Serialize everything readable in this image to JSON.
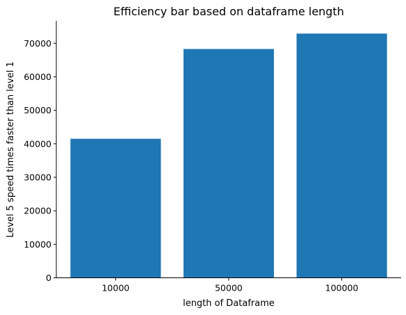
{
  "chart_data": {
    "type": "bar",
    "title": "Efficiency bar based on dataframe length",
    "xlabel": "length of Dataframe",
    "ylabel": "Level 5 speed times faster than level 1",
    "categories": [
      "10000",
      "50000",
      "100000"
    ],
    "values": [
      41500,
      68300,
      72900
    ],
    "ylim": [
      0,
      76700
    ],
    "yticks": [
      0,
      10000,
      20000,
      30000,
      40000,
      50000,
      60000,
      70000
    ],
    "bar_color": "#1f77b4",
    "grid": false,
    "legend": "none"
  }
}
